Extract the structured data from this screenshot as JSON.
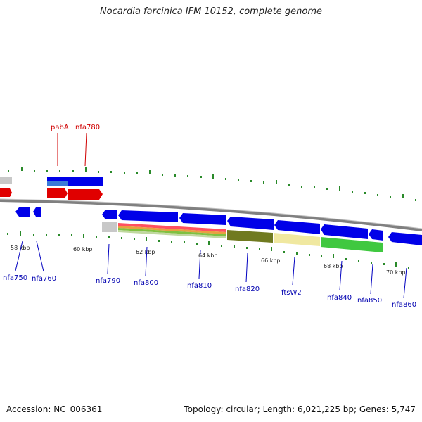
{
  "title": "Nocardia farcinica IFM 10152, complete genome",
  "footer": {
    "accession": "Accession: NC_006361",
    "summary": "Topology: circular; Length: 6,021,225 bp; Genes: 5,747"
  },
  "ruler_labels": [
    "58 kbp",
    "60 kbp",
    "62 kbp",
    "64 kbp",
    "66 kbp",
    "68 kbp",
    "70 kbp"
  ],
  "upper_gene_labels": [
    "pabA",
    "nfa780"
  ],
  "lower_gene_labels": [
    "nfa750",
    "nfa760",
    "nfa790",
    "nfa800",
    "nfa810",
    "nfa820",
    "ftsW2",
    "nfa840",
    "nfa850",
    "nfa860"
  ],
  "colors": {
    "forward_gene": "#d80000",
    "reverse_gene": "#0000e0",
    "backbone": "#808080",
    "tick": "#2a8a2a"
  }
}
